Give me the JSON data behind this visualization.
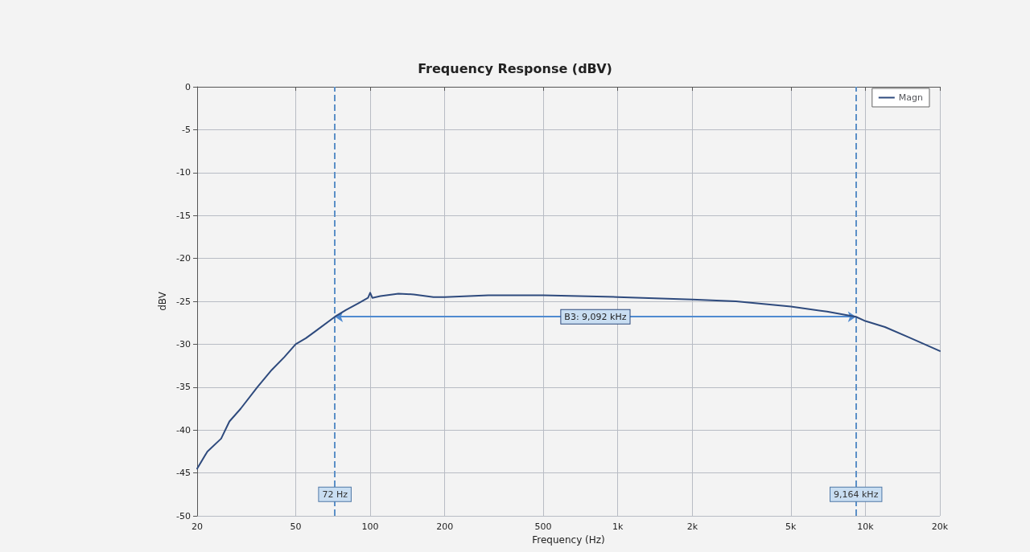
{
  "chart_data": {
    "type": "line",
    "title": "Frequency Response (dBV)",
    "xlabel": "Frequency (Hz)",
    "ylabel": "dBV",
    "x": [
      20,
      22,
      25,
      27,
      30,
      35,
      40,
      45,
      50,
      55,
      60,
      72,
      80,
      90,
      98,
      100,
      102,
      110,
      130,
      150,
      180,
      200,
      300,
      500,
      1000,
      2000,
      3000,
      5000,
      7000,
      9164,
      10000,
      12000,
      15000,
      20000
    ],
    "series": [
      {
        "name": "Magn",
        "color": "#2e4a7d",
        "values": [
          -44.5,
          -42.5,
          -41,
          -39,
          -37.5,
          -35,
          -33,
          -31.5,
          -30,
          -29.3,
          -28.5,
          -26.8,
          -26,
          -25.2,
          -24.6,
          -24,
          -24.6,
          -24.4,
          -24.1,
          -24.2,
          -24.5,
          -24.5,
          -24.3,
          -24.3,
          -24.5,
          -24.8,
          -25,
          -25.6,
          -26.2,
          -26.8,
          -27.3,
          -28,
          -29.2,
          -30.8
        ]
      }
    ],
    "xlim": [
      20,
      20000
    ],
    "log": "x",
    "xticks": [
      20,
      50,
      100,
      200,
      500,
      {
        "value": 1000,
        "label": "1k"
      },
      {
        "value": 2000,
        "label": "2k"
      },
      {
        "value": 5000,
        "label": "5k"
      },
      {
        "value": 10000,
        "label": "10k"
      },
      {
        "value": 20000,
        "label": "20k"
      }
    ],
    "ylim": [
      -50,
      0
    ],
    "yticks": [
      -50,
      -45,
      -40,
      -35,
      -30,
      -25,
      -20,
      -15,
      -10,
      -5,
      0
    ],
    "ref_lines": [
      {
        "axis": "x",
        "value": 72,
        "label": "72 Hz",
        "color": "#5b8fc7",
        "line_style": "dashed"
      },
      {
        "axis": "x",
        "value": 9164,
        "label": "9,164 kHz",
        "color": "#5b8fc7",
        "line_style": "dashed"
      }
    ],
    "annotations": [
      "B3: 9,092 kHz"
    ],
    "grid": true,
    "legend": "top right",
    "marker": "none",
    "line_style": "solid"
  }
}
